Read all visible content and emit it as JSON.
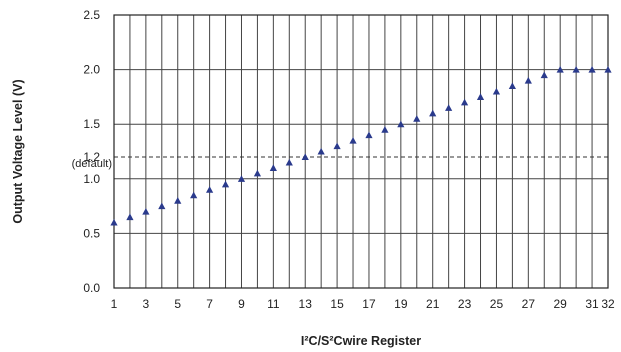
{
  "chart_data": {
    "type": "scatter",
    "xlabel": "I²C/S²Cwire Register",
    "ylabel": "Output Voltage Level (V)",
    "xlim": [
      1,
      32
    ],
    "ylim": [
      0.0,
      2.5
    ],
    "x_ticks": [
      "1",
      "3",
      "5",
      "7",
      "9",
      "11",
      "13",
      "15",
      "17",
      "19",
      "21",
      "23",
      "25",
      "27",
      "29",
      "31",
      "32"
    ],
    "y_ticks": [
      "0.0",
      "0.5",
      "1.0",
      "1.2",
      "1.5",
      "2.0",
      "2.5"
    ],
    "y_grid": [
      0.0,
      0.5,
      1.0,
      1.5,
      2.0,
      2.5
    ],
    "default_line": {
      "value": 1.2,
      "label": "(default)"
    },
    "marker_color": "#2a3a8c",
    "x": [
      1,
      2,
      3,
      4,
      5,
      6,
      7,
      8,
      9,
      10,
      11,
      12,
      13,
      14,
      15,
      16,
      17,
      18,
      19,
      20,
      21,
      22,
      23,
      24,
      25,
      26,
      27,
      28,
      29,
      30,
      31,
      32
    ],
    "y": [
      0.6,
      0.65,
      0.7,
      0.75,
      0.8,
      0.85,
      0.9,
      0.95,
      1.0,
      1.05,
      1.1,
      1.15,
      1.2,
      1.25,
      1.3,
      1.35,
      1.4,
      1.45,
      1.5,
      1.55,
      1.6,
      1.65,
      1.7,
      1.75,
      1.8,
      1.85,
      1.9,
      1.95,
      2.0,
      2.0,
      2.0,
      2.0
    ]
  }
}
